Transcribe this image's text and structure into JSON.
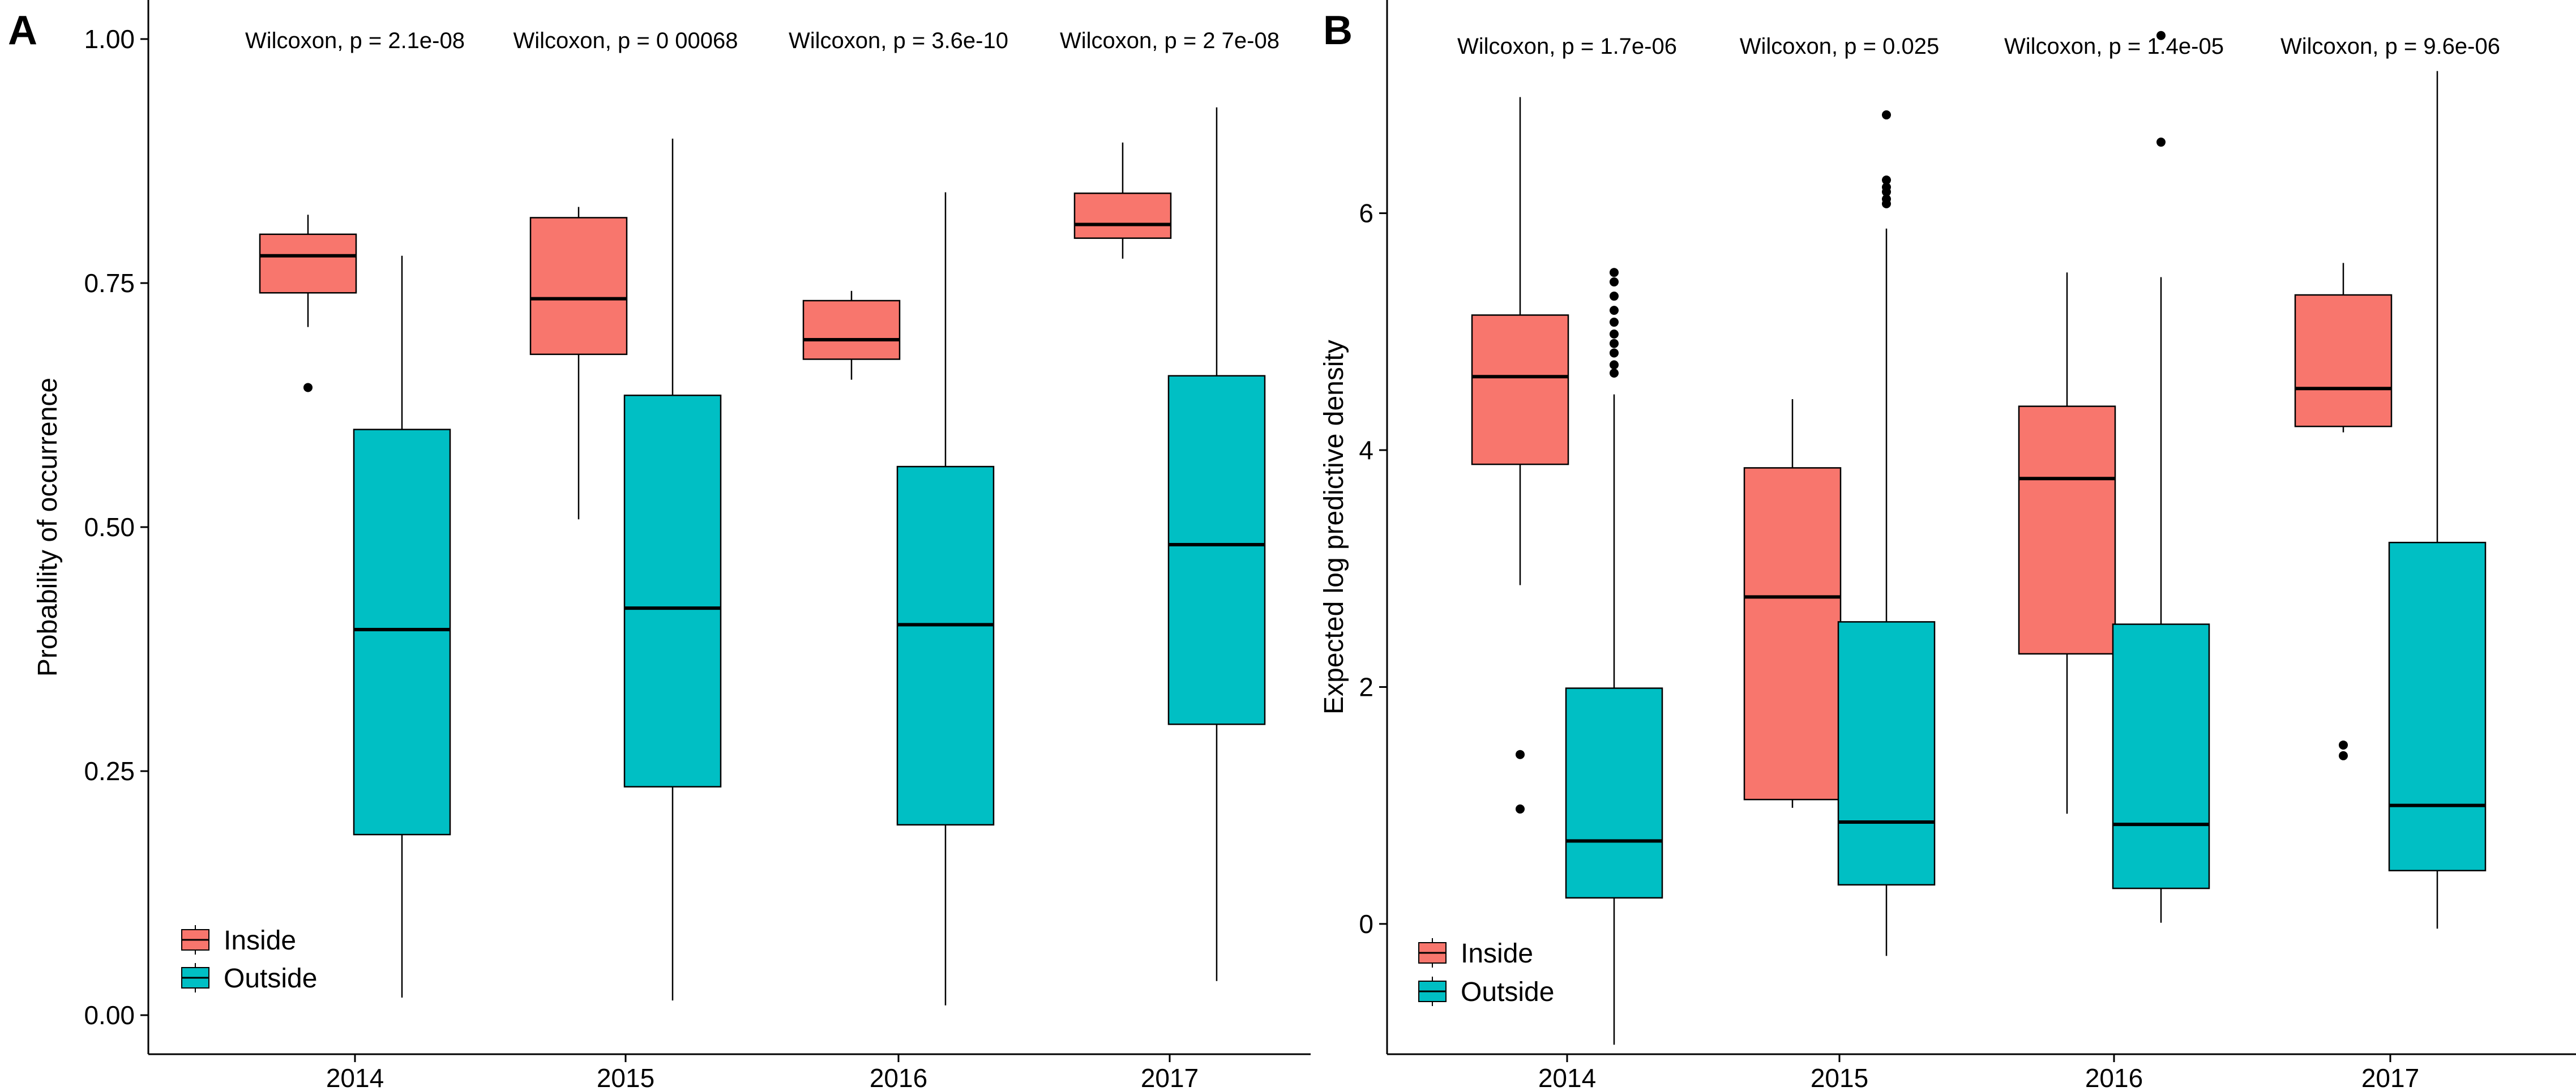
{
  "chart_data": [
    {
      "type": "box",
      "panel": "A",
      "title": "",
      "xlabel": "",
      "ylabel": "Probability of occurrence",
      "categories": [
        "2014",
        "2015",
        "2016",
        "2017"
      ],
      "ylim": [
        -0.04,
        1.04
      ],
      "yticks": [
        0.0,
        0.25,
        0.5,
        0.75,
        1.0
      ],
      "ytick_labels": [
        "0.00",
        "0.25",
        "0.50",
        "0.75",
        "1.00"
      ],
      "annotations": [
        "Wilcoxon, p = 2.1e-08",
        "Wilcoxon, p = 0 00068",
        "Wilcoxon, p = 3.6e-10",
        "Wilcoxon, p = 2 7e-08"
      ],
      "legend_position": "bottom-left",
      "series": [
        {
          "name": "Inside",
          "color": "#F8766D",
          "boxes": [
            {
              "min": 0.705,
              "q1": 0.74,
              "median": 0.778,
              "q3": 0.8,
              "max": 0.82,
              "outliers": [
                0.643
              ]
            },
            {
              "min": 0.508,
              "q1": 0.677,
              "median": 0.734,
              "q3": 0.817,
              "max": 0.828,
              "outliers": []
            },
            {
              "min": 0.651,
              "q1": 0.672,
              "median": 0.692,
              "q3": 0.732,
              "max": 0.742,
              "outliers": []
            },
            {
              "min": 0.775,
              "q1": 0.796,
              "median": 0.81,
              "q3": 0.842,
              "max": 0.894,
              "outliers": []
            }
          ]
        },
        {
          "name": "Outside",
          "color": "#00BFC4",
          "boxes": [
            {
              "min": 0.018,
              "q1": 0.185,
              "median": 0.395,
              "q3": 0.6,
              "max": 0.778,
              "outliers": []
            },
            {
              "min": 0.015,
              "q1": 0.234,
              "median": 0.417,
              "q3": 0.635,
              "max": 0.898,
              "outliers": []
            },
            {
              "min": 0.01,
              "q1": 0.195,
              "median": 0.4,
              "q3": 0.562,
              "max": 0.843,
              "outliers": []
            },
            {
              "min": 0.035,
              "q1": 0.298,
              "median": 0.482,
              "q3": 0.655,
              "max": 0.93,
              "outliers": []
            }
          ]
        }
      ]
    },
    {
      "type": "box",
      "panel": "B",
      "title": "",
      "xlabel": "",
      "ylabel": "Expected log predictive density",
      "categories": [
        "2014",
        "2015",
        "2016",
        "2017"
      ],
      "ylim": [
        -1.1,
        7.8
      ],
      "yticks": [
        0,
        2,
        4,
        6
      ],
      "ytick_labels": [
        "0",
        "2",
        "4",
        "6"
      ],
      "annotations": [
        "Wilcoxon, p = 1.7e-06",
        "Wilcoxon, p = 0.025",
        "Wilcoxon, p = 1.4e-05",
        "Wilcoxon, p = 9.6e-06"
      ],
      "legend_position": "bottom-left",
      "series": [
        {
          "name": "Inside",
          "color": "#F8766D",
          "boxes": [
            {
              "min": 2.86,
              "q1": 3.88,
              "median": 4.62,
              "q3": 5.14,
              "max": 6.98,
              "outliers": [
                1.43,
                0.97
              ]
            },
            {
              "min": 0.98,
              "q1": 1.05,
              "median": 2.76,
              "q3": 3.85,
              "max": 4.43,
              "outliers": []
            },
            {
              "min": 0.93,
              "q1": 2.28,
              "median": 3.76,
              "q3": 4.37,
              "max": 5.5,
              "outliers": []
            },
            {
              "min": 4.15,
              "q1": 4.2,
              "median": 4.52,
              "q3": 5.31,
              "max": 5.58,
              "outliers": [
                1.51,
                1.42
              ]
            }
          ]
        },
        {
          "name": "Outside",
          "color": "#00BFC4",
          "boxes": [
            {
              "min": -1.02,
              "q1": 0.22,
              "median": 0.7,
              "q3": 1.99,
              "max": 4.47,
              "outliers": [
                4.65,
                4.72,
                4.82,
                4.9,
                4.98,
                5.08,
                5.18,
                5.3,
                5.42,
                5.5
              ]
            },
            {
              "min": -0.27,
              "q1": 0.33,
              "median": 0.86,
              "q3": 2.55,
              "max": 5.87,
              "outliers": [
                6.08,
                6.12,
                6.18,
                6.22,
                6.28,
                6.83
              ]
            },
            {
              "min": 0.01,
              "q1": 0.3,
              "median": 0.84,
              "q3": 2.53,
              "max": 5.46,
              "outliers": [
                6.6,
                7.5
              ]
            },
            {
              "min": -0.04,
              "q1": 0.45,
              "median": 1.0,
              "q3": 3.22,
              "max": 7.2,
              "outliers": []
            }
          ]
        }
      ]
    }
  ]
}
